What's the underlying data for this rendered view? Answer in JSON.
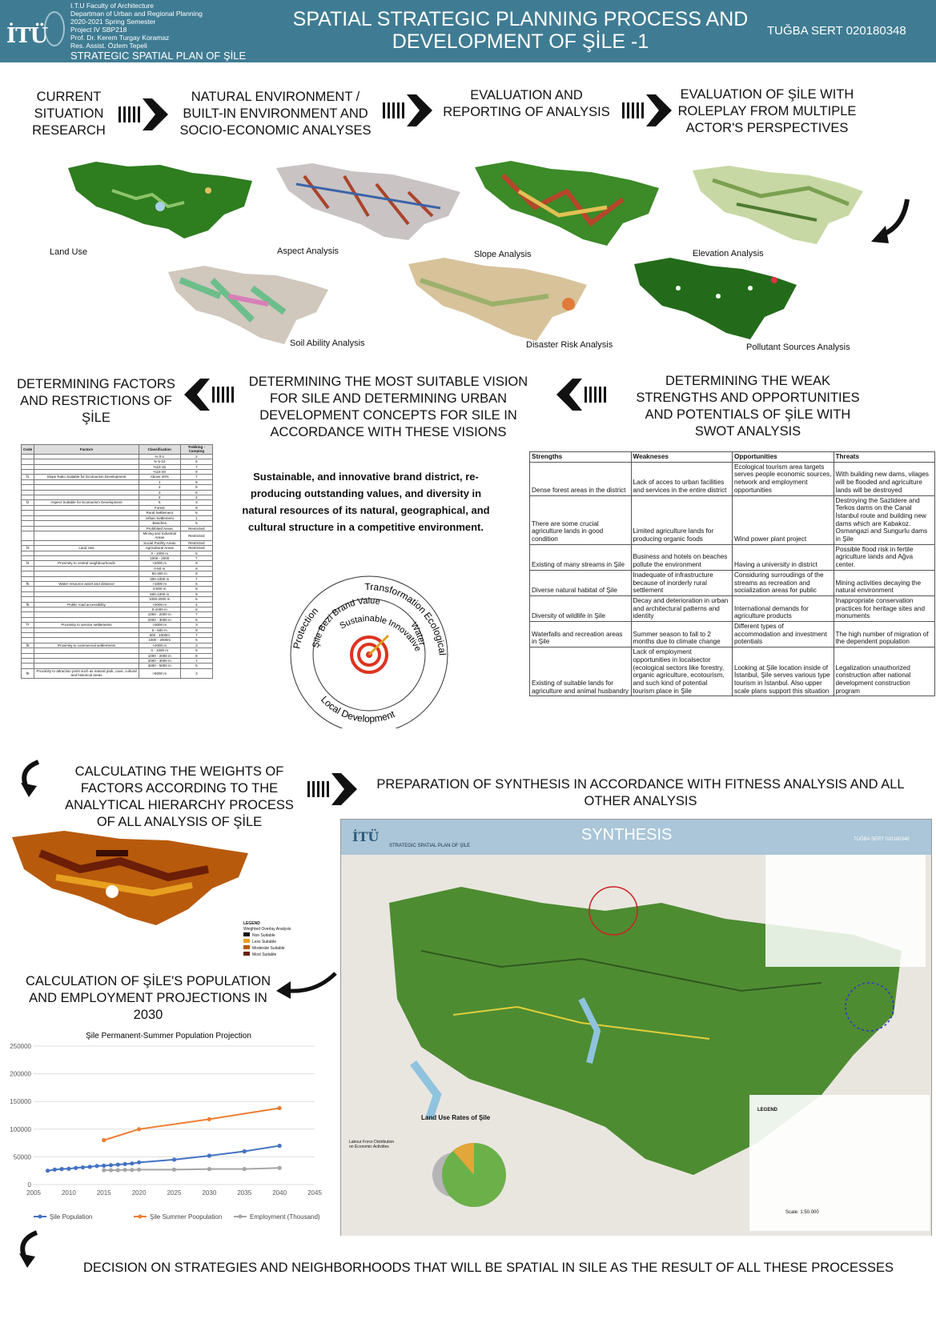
{
  "header": {
    "logo": "İTÜ",
    "info_lines": [
      "I.T.U Faculty of Architecture",
      "Departman of Urban and Regional Planning",
      "2020-2021 Spring Semester",
      "Project IV SBP218",
      "Prof. Dr. Kerem Turgay Koramaz",
      "Res. Assist. Özlem Tepeli"
    ],
    "subtitle": "STRATEGIC SPATIAL PLAN OF ŞİLE",
    "title_line1": "SPATIAL STRATEGIC PLANNING PROCESS AND",
    "title_line2": "DEVELOPMENT OF ŞİLE -1",
    "author": "TUĞBA SERT 020180348",
    "colors": {
      "header_bg": "#3f7c93",
      "map_green": "#2e7d1f",
      "arrow": "#111111",
      "chart_blue": "#4472c4",
      "chart_orange": "#ed7d31",
      "chart_gray": "#a5a5a5"
    }
  },
  "steps": {
    "s1": "CURRENT SITUATION RESEARCH",
    "s2": "NATURAL ENVIRONMENT / BUILT-IN ENVIRONMENT AND SOCIO-ECONOMIC ANALYSES",
    "s3": "EVALUATION AND REPORTING OF ANALYSIS",
    "s4": "EVALUATION OF ŞİLE WITH ROLEPLAY FROM MULTIPLE ACTOR'S PERSPECTIVES",
    "s5": "DETERMINING THE WEAK STRENGTHS AND OPPORTUNITIES AND POTENTIALS OF ŞİLE WITH SWOT ANALYSIS",
    "s6": "DETERMINING THE MOST SUITABLE VISION FOR SILE AND DETERMINING URBAN DEVELOPMENT CONCEPTS FOR SILE IN ACCORDANCE WITH THESE VISIONS",
    "s7": "DETERMINING FACTORS AND RESTRICTIONS OF ŞİLE",
    "s8": "CALCULATING THE WEIGHTS OF FACTORS ACCORDING TO THE ANALYTICAL HIERARCHY PROCESS OF ALL ANALYSIS OF ŞİLE",
    "s9": "PREPARATION OF SYNTHESIS IN ACCORDANCE WITH FITNESS ANALYSIS AND ALL OTHER ANALYSIS",
    "s10": "CALCULATION OF ŞİLE'S POPULATION AND EMPLOYMENT PROJECTIONS IN 2030",
    "s11": "DECISION ON STRATEGIES AND NEIGHBORHOODS THAT WILL BE SPATIAL IN SILE AS THE RESULT OF ALL THESE PROCESSES"
  },
  "maps": {
    "land_use": "Land Use",
    "aspect": "Aspect Analysis",
    "slope": "Slope Analysis",
    "elevation": "Elevation Analysis",
    "soil": "Soil Ability Analysis",
    "disaster": "Disaster Risk Analysis",
    "pollutant": "Pollutant Sources Analysis"
  },
  "vision": {
    "text": "Sustainable, and innovative brand district, re-producing outstanding values, and diversity in natural resources of its natural, geographical, and cultural structure in a competitive environment.",
    "outer_words": [
      "Protection",
      "Transformation",
      "Ecological Tourism",
      "Local Development"
    ],
    "inner_words": [
      "Şile Bezi Brand Value",
      "Water",
      "Sustainable",
      "Innovative"
    ]
  },
  "factors": {
    "headers": [
      "Code",
      "Factors",
      "Classification",
      "Trekking - Camping"
    ],
    "rows": [
      [
        "",
        "",
        "% 0-1",
        "2"
      ],
      [
        "",
        "",
        "% 5-10",
        "6"
      ],
      [
        "",
        "",
        "%10-15",
        "7"
      ],
      [
        "",
        "",
        "%15-40",
        "9"
      ],
      [
        "f1",
        "Slope Ratio Suitable for Ecotourism Development",
        "Above 40%",
        "7"
      ],
      [
        "",
        "",
        "1",
        "9"
      ],
      [
        "",
        "",
        "2",
        "8"
      ],
      [
        "",
        "",
        "3",
        "6"
      ],
      [
        "",
        "",
        "4",
        "4"
      ],
      [
        "f2",
        "Aspect Suitable for Ecotourism Development",
        "5",
        "3"
      ],
      [
        "",
        "",
        "Forest",
        "9"
      ],
      [
        "",
        "",
        "Rural Settlement",
        "6"
      ],
      [
        "",
        "",
        "Urban Settlement",
        "1"
      ],
      [
        "",
        "",
        "Beaches",
        "5"
      ],
      [
        "",
        "",
        "Prohibited Areas",
        "Restricted"
      ],
      [
        "",
        "",
        "Mining and Industrial Areas",
        "Restricted"
      ],
      [
        "",
        "",
        "Social Facility Areas",
        "Restricted"
      ],
      [
        "f3",
        "Land Use",
        "Agricultural Areas",
        "Restricted"
      ],
      [
        "",
        "",
        "0 - 1000 m",
        "5"
      ],
      [
        "",
        "",
        "1000 - 2000",
        "7"
      ],
      [
        "f4",
        "Proximity to central neighbourhoods",
        ">2000 m",
        "9"
      ],
      [
        "",
        "",
        "0-50 m",
        "9"
      ],
      [
        "",
        "",
        "50-300 m",
        "8"
      ],
      [
        "",
        "",
        "300-1000 m",
        "7"
      ],
      [
        "f5",
        "Water resource asset and distance",
        ">1000 m",
        "6"
      ],
      [
        "",
        "",
        "0-500 m",
        "8"
      ],
      [
        "",
        "",
        "500-1000 m",
        "9"
      ],
      [
        "",
        "",
        "1000-2000 m",
        "6"
      ],
      [
        "f6",
        "Public road accessibility",
        ">2000 m",
        "4"
      ],
      [
        "",
        "",
        "0-1000 m",
        "9"
      ],
      [
        "",
        "",
        "1000 - 2000 m",
        "7"
      ],
      [
        "",
        "",
        "2000 - 3000 m",
        "5"
      ],
      [
        "f7",
        "Proximity to service settlements",
        ">3000 m",
        "3"
      ],
      [
        "",
        "",
        "0 - 500 m",
        "9"
      ],
      [
        "",
        "",
        "500 - 1000m",
        "7"
      ],
      [
        "",
        "",
        "1000 - 2000m",
        "5"
      ],
      [
        "f8",
        "Proximity to commercial settlements",
        ">2000 m",
        "3"
      ],
      [
        "",
        "",
        "0 - 1000 m",
        "9"
      ],
      [
        "",
        "",
        "1000 - 2000 m",
        "8"
      ],
      [
        "",
        "",
        "2000 - 3000 m",
        "7"
      ],
      [
        "",
        "",
        "3000 - 5000 m",
        "5"
      ],
      [
        "f9",
        "Proximity to attraction point such as natural park, cave, cultural and historical areas",
        ">5000 m",
        "3"
      ]
    ]
  },
  "swot": {
    "headers": [
      "Strengths",
      "Weakneses",
      "Opportunities",
      "Threats"
    ],
    "rows": [
      [
        "Dense forest areas in the district",
        "Lack of acces to urban facilities and services in the entire district",
        "Ecological tourism area targets serves people economic sources, network and employment opportunities",
        "With building new dams, vilages will be flooded and agriculture lands will be destroyed"
      ],
      [
        "There are some crucial agriculture lands in good condition",
        "Limited agriculture lands for producing organic foods",
        "Wind power plant project",
        "Destroying the Sazlidere and Terkos dams on the Canal İstanbul route and building new dams which are Kabakoz. Osmangazi and Sungurlu dams in Şile"
      ],
      [
        "Existing of many streams in Şile",
        "Business and hotels on beaches pollute the environment",
        "Having a university in district",
        "Possible flood risk in fertile agriculture lands and Ağva center."
      ],
      [
        "Diverse natural habitat of Şile",
        "Inadequate of infrastructure because of inorderly rural settlement",
        "Considuring surroudings of the streams as recreation and socialization areas for public",
        "Mining activities decaying the natural environment"
      ],
      [
        "Diversity of wildlife in Şile",
        "Decay and deterioration in urban and architectural patterns and identity",
        "International demands for agriculture products",
        "Inappropriate conservation practices for heritage sites and monuments"
      ],
      [
        "Waterfalls and recreation areas in Şile",
        "Summer season to fall to 2 months due to climate change",
        "Different types of accommodation and investment potentials",
        "The high number of migration of the dependent population"
      ],
      [
        "Existing of suitable lands for agriculture and animal husbandry",
        "Lack of employment opportunities in localsector (ecological sectors like forestry, organic agriculture, ecotourism, and such kind of potential tourism place in Şile",
        "Looking at Şile location inside of İstanbul, Şile serves various type tourism in İstanbul. Also upper scale plans support this situation",
        "Legalization unauthorized construction after national development construction program"
      ]
    ]
  },
  "weighted_legend": {
    "title": "LEGEND",
    "subtitle": "Weighted Overlay Analysis",
    "items": [
      "Non Suitable",
      "Less Suitable",
      "Moderate Suitable",
      "Most Suitable"
    ]
  },
  "synthesis": {
    "logo": "İTÜ",
    "header_line": "STRATEGIC SPATIAL PLAN OF ŞİLE",
    "title": "SYNTHESIS",
    "author": "TUĞBA SERT 020180348",
    "scale": "Scale: 1:50.000",
    "land_use_rates": "Land Use Rates of Şile",
    "labour": "Labour Force Distribution on Economic Activities",
    "legend": "LEGEND"
  },
  "chart_data": {
    "type": "line",
    "title": "Şile Permanent-Summer Population Projection",
    "xlim": [
      2005,
      2045
    ],
    "ylim": [
      0,
      250000
    ],
    "x_ticks": [
      2005,
      2010,
      2015,
      2020,
      2025,
      2030,
      2035,
      2040,
      2045
    ],
    "y_ticks": [
      0,
      50000,
      100000,
      150000,
      200000,
      250000
    ],
    "series": [
      {
        "name": "Şile Population",
        "color": "#4472c4",
        "x": [
          2007,
          2008,
          2009,
          2010,
          2011,
          2012,
          2013,
          2014,
          2015,
          2016,
          2017,
          2018,
          2019,
          2020,
          2025,
          2030,
          2035,
          2040
        ],
        "y": [
          25000,
          27000,
          28000,
          28500,
          30000,
          31000,
          32000,
          33500,
          34000,
          35000,
          36000,
          37000,
          38000,
          40000,
          45000,
          52000,
          60000,
          70000
        ]
      },
      {
        "name": "Şile Summer Poopulation",
        "color": "#ed7d31",
        "x": [
          2015,
          2020,
          2030,
          2040
        ],
        "y": [
          80000,
          100000,
          118000,
          138000
        ]
      },
      {
        "name": "Employment (Thousand)",
        "color": "#a5a5a5",
        "x": [
          2015,
          2016,
          2017,
          2018,
          2019,
          2020,
          2025,
          2030,
          2035,
          2040
        ],
        "y": [
          26000,
          26000,
          26000,
          26500,
          26500,
          27000,
          27000,
          28000,
          28000,
          30000
        ]
      }
    ]
  }
}
